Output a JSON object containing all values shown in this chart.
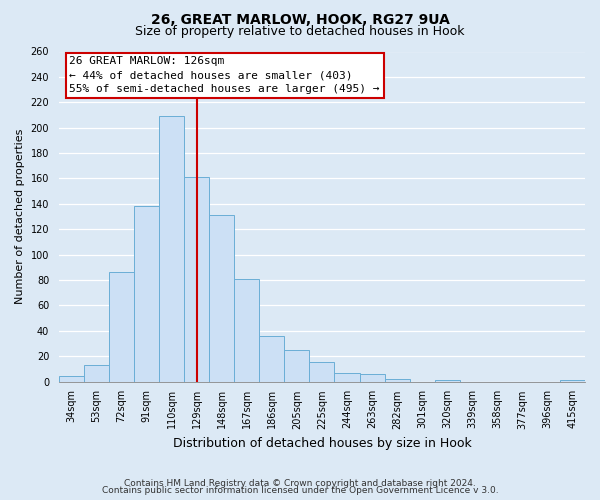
{
  "title": "26, GREAT MARLOW, HOOK, RG27 9UA",
  "subtitle": "Size of property relative to detached houses in Hook",
  "xlabel": "Distribution of detached houses by size in Hook",
  "ylabel": "Number of detached properties",
  "footer1": "Contains HM Land Registry data © Crown copyright and database right 2024.",
  "footer2": "Contains public sector information licensed under the Open Government Licence v 3.0.",
  "categories": [
    "34sqm",
    "53sqm",
    "72sqm",
    "91sqm",
    "110sqm",
    "129sqm",
    "148sqm",
    "167sqm",
    "186sqm",
    "205sqm",
    "225sqm",
    "244sqm",
    "263sqm",
    "282sqm",
    "301sqm",
    "320sqm",
    "339sqm",
    "358sqm",
    "377sqm",
    "396sqm",
    "415sqm"
  ],
  "values": [
    4,
    13,
    86,
    138,
    209,
    161,
    131,
    81,
    36,
    25,
    15,
    7,
    6,
    2,
    0,
    1,
    0,
    0,
    0,
    0,
    1
  ],
  "bar_color": "#cce0f5",
  "bar_edge_color": "#6aaed6",
  "vline_x_idx": 5,
  "vline_color": "#cc0000",
  "annotation_title": "26 GREAT MARLOW: 126sqm",
  "annotation_line1": "← 44% of detached houses are smaller (403)",
  "annotation_line2": "55% of semi-detached houses are larger (495) →",
  "annotation_box_facecolor": "#ffffff",
  "annotation_box_edgecolor": "#cc0000",
  "ylim": [
    0,
    260
  ],
  "yticks": [
    0,
    20,
    40,
    60,
    80,
    100,
    120,
    140,
    160,
    180,
    200,
    220,
    240,
    260
  ],
  "background_color": "#dce9f5",
  "grid_color": "#ffffff",
  "title_fontsize": 10,
  "subtitle_fontsize": 9,
  "xlabel_fontsize": 9,
  "ylabel_fontsize": 8,
  "tick_fontsize": 7,
  "footer_fontsize": 6.5,
  "annotation_fontsize": 8
}
